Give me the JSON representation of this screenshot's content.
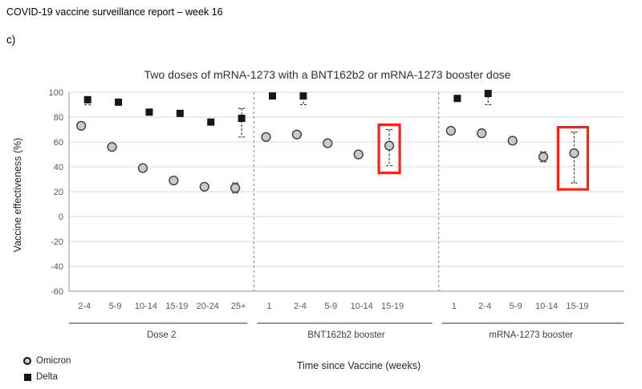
{
  "header": {
    "title": "COVID-19 vaccine surveillance report – week 16",
    "section_label": "c)"
  },
  "chart_data": {
    "type": "scatter",
    "title": "Two doses of mRNA-1273 with a BNT162b2 or mRNA-1273 booster dose",
    "xlabel": "Time since Vaccine (weeks)",
    "ylabel": "Vaccine effectiveness (%)",
    "ylim": [
      -60,
      100
    ],
    "yticks": [
      100,
      80,
      60,
      40,
      20,
      0,
      -20,
      -40,
      -60
    ],
    "grid": true,
    "legend_position": "bottom-left",
    "legend": [
      {
        "label": "Omicron",
        "marker": "circle"
      },
      {
        "label": "Delta",
        "marker": "square"
      }
    ],
    "panels": [
      {
        "label": "Dose 2",
        "categories": [
          "2-4",
          "5-9",
          "10-14",
          "15-19",
          "20-24",
          "25+"
        ],
        "series": [
          {
            "name": "Omicron",
            "marker": "circle",
            "values": [
              73,
              56,
              39,
              29,
              24,
              23
            ],
            "error_bars": {
              "5": [
                19,
                27
              ]
            }
          },
          {
            "name": "Delta",
            "marker": "square",
            "values": [
              94,
              92,
              84,
              83,
              76,
              79
            ],
            "error_bars": {
              "0": [
                90,
                96
              ],
              "5": [
                64,
                87
              ]
            }
          }
        ]
      },
      {
        "label": "BNT162b2 booster",
        "categories": [
          "1",
          "2-4",
          "5-9",
          "10-14",
          "15-19"
        ],
        "series": [
          {
            "name": "Omicron",
            "marker": "circle",
            "values": [
              64,
              66,
              59,
              50,
              57
            ],
            "error_bars": {
              "4": [
                41,
                70
              ]
            }
          },
          {
            "name": "Delta",
            "marker": "square",
            "values": [
              97,
              97,
              null,
              null,
              null
            ],
            "error_bars": {
              "1": [
                90,
                99
              ]
            }
          }
        ],
        "highlight": {
          "category": "15-19",
          "series": "Omicron"
        }
      },
      {
        "label": "mRNA-1273 booster",
        "categories": [
          "1",
          "2-4",
          "5-9",
          "10-14",
          "15-19"
        ],
        "series": [
          {
            "name": "Omicron",
            "marker": "circle",
            "values": [
              69,
              67,
              61,
              48,
              51
            ],
            "error_bars": {
              "3": [
                44,
                52
              ],
              "4": [
                27,
                68
              ]
            }
          },
          {
            "name": "Delta",
            "marker": "square",
            "values": [
              95,
              99,
              null,
              null,
              null
            ],
            "error_bars": {
              "1": [
                90,
                100
              ]
            }
          }
        ],
        "highlight": {
          "category": "15-19",
          "series": "Omicron"
        }
      }
    ],
    "colors": {
      "omicron_fill": "#c9c9c9",
      "omicron_stroke": "#3d3d3d",
      "delta_fill": "#171717",
      "error_bar": "#404040",
      "gridline": "#d9d9d9",
      "axis_line": "#a6a6a6",
      "divider": "#808080",
      "highlight_box": "#ff2115",
      "tick_text": "#595959",
      "group_text": "#404040"
    }
  }
}
